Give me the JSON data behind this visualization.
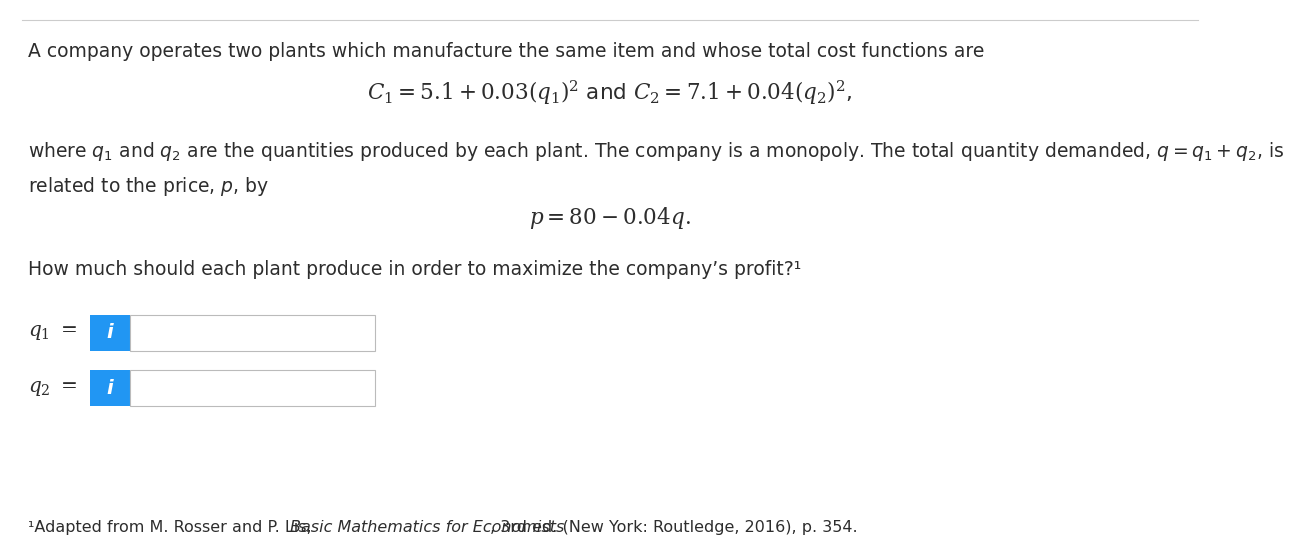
{
  "bg_color": "#ffffff",
  "border_color": "#cccccc",
  "text_color": "#2d2d2d",
  "blue_color": "#2196F3",
  "input_bg": "#ffffff",
  "input_border": "#bbbbbb",
  "line1": "A company operates two plants which manufacture the same item and whose total cost functions are",
  "line2_math": "$C_1 = 5.1 + 0.03(q_1)^2$ and $C_2 = 7.1 + 0.04(q_2)^2$,",
  "line3": "where $q_1$ and $q_2$ are the quantities produced by each plant. The company is a monopoly. The total quantity demanded, $q = q_1 + q_2$, is",
  "line4": "related to the price, $p$, by",
  "line5_math": "$p = 80 - 0.04q.$",
  "line6": "How much should each plant produce in order to maximize the company’s profit?¹",
  "label_q1": "$q_1\\ =$",
  "label_q2": "$q_2\\ =$",
  "footnote1": "¹Adapted from M. Rosser and P. Lis, ",
  "footnote2": "Basic Mathematics for Economists",
  "footnote3": ", 3rd ed. (New York: Routledge, 2016), p. 354."
}
